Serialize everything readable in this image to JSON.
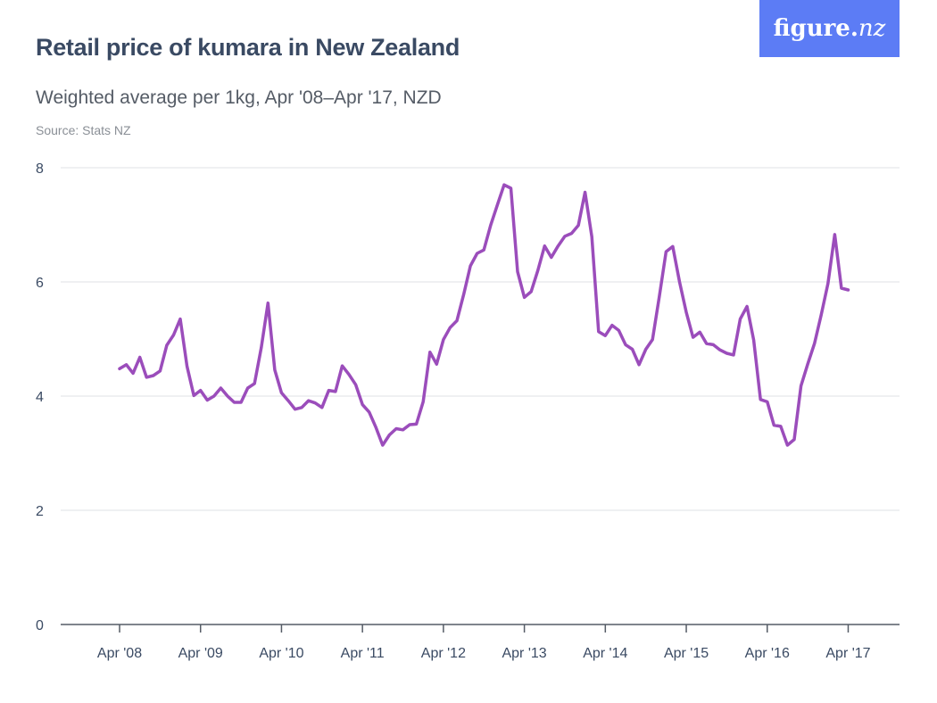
{
  "header": {
    "title": "Retail price of kumara in New Zealand",
    "subtitle": "Weighted average per 1kg, Apr '08–Apr '17, NZD",
    "source": "Source: Stats NZ"
  },
  "logo": {
    "main": "figure.",
    "suffix": "nz",
    "color": "#5c7cf5"
  },
  "chart_data": {
    "type": "line",
    "title": "Retail price of kumara in New Zealand",
    "subtitle": "Weighted average per 1kg, Apr '08–Apr '17, NZD",
    "xlabel": "",
    "ylabel": "",
    "ylim": [
      0,
      8
    ],
    "yticks": [
      0,
      2,
      4,
      6,
      8
    ],
    "xticks": [
      "Apr '08",
      "Apr '09",
      "Apr '10",
      "Apr '11",
      "Apr '12",
      "Apr '13",
      "Apr '14",
      "Apr '15",
      "Apr '16",
      "Apr '17"
    ],
    "x_start": "Apr 2008",
    "x_interval": "monthly",
    "grid": true,
    "line_color": "#9b4dbb",
    "series": [
      {
        "values": [
          4.48,
          4.55,
          4.4,
          4.68,
          4.33,
          4.36,
          4.44,
          4.89,
          5.07,
          5.35,
          4.52,
          4.01,
          4.1,
          3.93,
          4.0,
          4.14,
          4.0,
          3.89,
          3.89,
          4.14,
          4.22,
          4.85,
          5.63,
          4.46,
          4.06,
          3.92,
          3.77,
          3.8,
          3.92,
          3.88,
          3.8,
          4.1,
          4.08,
          4.53,
          4.38,
          4.2,
          3.85,
          3.72,
          3.45,
          3.14,
          3.32,
          3.43,
          3.41,
          3.5,
          3.51,
          3.9,
          4.77,
          4.56,
          4.99,
          5.2,
          5.32,
          5.78,
          6.28,
          6.5,
          6.56,
          6.99,
          7.35,
          7.7,
          7.64,
          6.18,
          5.73,
          5.83,
          6.2,
          6.63,
          6.43,
          6.63,
          6.8,
          6.85,
          6.99,
          7.57,
          6.79,
          5.13,
          5.06,
          5.24,
          5.15,
          4.9,
          4.82,
          4.55,
          4.82,
          4.99,
          5.74,
          6.53,
          6.62,
          6.0,
          5.47,
          5.03,
          5.12,
          4.92,
          4.9,
          4.81,
          4.75,
          4.72,
          5.35,
          5.57,
          4.98,
          3.94,
          3.9,
          3.49,
          3.47,
          3.14,
          3.24,
          4.18,
          4.56,
          4.92,
          5.42,
          5.97,
          6.83,
          5.89,
          5.86
        ]
      }
    ]
  }
}
